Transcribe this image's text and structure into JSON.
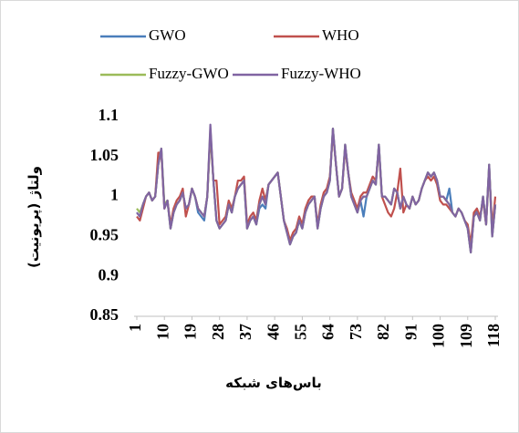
{
  "chart_data": {
    "type": "line",
    "x_label": "باس‌های شبکه",
    "y_label": "ولتاژ (پریونیت)",
    "x": [
      1,
      2,
      3,
      4,
      5,
      6,
      7,
      8,
      9,
      10,
      11,
      12,
      13,
      14,
      15,
      16,
      17,
      18,
      19,
      20,
      21,
      22,
      23,
      24,
      25,
      26,
      27,
      28,
      29,
      30,
      31,
      32,
      33,
      34,
      35,
      36,
      37,
      38,
      39,
      40,
      41,
      42,
      43,
      44,
      45,
      46,
      47,
      48,
      49,
      50,
      51,
      52,
      53,
      54,
      55,
      56,
      57,
      58,
      59,
      60,
      61,
      62,
      63,
      64,
      65,
      66,
      67,
      68,
      69,
      70,
      71,
      72,
      73,
      74,
      75,
      76,
      77,
      78,
      79,
      80,
      81,
      82,
      83,
      84,
      85,
      86,
      87,
      88,
      89,
      90,
      91,
      92,
      93,
      94,
      95,
      96,
      97,
      98,
      99,
      100,
      101,
      102,
      103,
      104,
      105,
      106,
      107,
      108,
      109,
      110,
      111,
      112,
      113,
      114,
      115,
      116,
      117,
      118
    ],
    "xlim": [
      1,
      118
    ],
    "xticks": [
      1,
      10,
      19,
      28,
      37,
      46,
      55,
      64,
      73,
      82,
      91,
      100,
      109,
      118
    ],
    "ylim": [
      0.85,
      1.1
    ],
    "yticks": [
      0.85,
      0.9,
      0.95,
      1,
      1.05,
      1.1
    ],
    "grid": false,
    "series": [
      {
        "name": "GWO",
        "color": "#4a7ebb",
        "values": [
          0.98,
          0.975,
          0.99,
          1.0,
          1.005,
          0.995,
          1.0,
          1.04,
          1.06,
          0.985,
          0.995,
          0.96,
          0.98,
          0.99,
          0.995,
          1.005,
          0.985,
          0.99,
          1.01,
          1.0,
          0.98,
          0.975,
          0.97,
          1.0,
          1.08,
          1.02,
          0.97,
          0.96,
          0.965,
          0.97,
          0.99,
          0.98,
          1.0,
          1.01,
          1.015,
          1.02,
          0.96,
          0.97,
          0.975,
          0.965,
          0.985,
          0.99,
          0.985,
          1.015,
          1.02,
          1.025,
          1.03,
          1.0,
          0.97,
          0.955,
          0.94,
          0.95,
          0.955,
          0.97,
          0.96,
          0.98,
          0.99,
          0.995,
          1.0,
          0.96,
          0.985,
          1.0,
          1.005,
          1.02,
          1.085,
          1.04,
          1.0,
          1.01,
          1.065,
          1.03,
          1.0,
          0.99,
          0.98,
          0.995,
          0.975,
          1.0,
          1.01,
          1.02,
          1.015,
          1.065,
          1.0,
          1.0,
          0.995,
          0.99,
          1.01,
          1.005,
          0.985,
          1.0,
          0.99,
          0.985,
          1.0,
          0.99,
          0.995,
          1.01,
          1.02,
          1.03,
          1.025,
          1.03,
          1.02,
          1.0,
          1.0,
          0.995,
          1.01,
          0.98,
          0.975,
          0.985,
          0.98,
          0.97,
          0.96,
          0.93,
          0.975,
          0.985,
          0.97,
          1.0,
          0.965,
          1.04,
          0.95,
          0.99
        ]
      },
      {
        "name": "WHO",
        "color": "#c0504d",
        "values": [
          0.975,
          0.97,
          0.985,
          1.0,
          1.005,
          0.995,
          1.0,
          1.055,
          1.055,
          0.985,
          0.995,
          0.965,
          0.985,
          0.995,
          1.0,
          1.01,
          0.975,
          0.99,
          1.01,
          1.0,
          0.985,
          0.98,
          0.975,
          1.0,
          1.08,
          1.02,
          1.02,
          0.965,
          0.97,
          0.975,
          0.995,
          0.985,
          1.0,
          1.02,
          1.02,
          1.025,
          0.965,
          0.975,
          0.98,
          0.97,
          0.995,
          1.01,
          0.995,
          1.015,
          1.02,
          1.025,
          1.03,
          1.0,
          0.97,
          0.96,
          0.945,
          0.955,
          0.96,
          0.975,
          0.965,
          0.985,
          0.995,
          1.0,
          1.0,
          0.965,
          0.99,
          1.005,
          1.01,
          1.025,
          1.08,
          1.04,
          1.0,
          1.01,
          1.06,
          1.03,
          1.005,
          0.995,
          0.985,
          1.0,
          1.005,
          1.005,
          1.015,
          1.025,
          1.02,
          1.06,
          1.0,
          0.99,
          0.98,
          0.975,
          0.985,
          1.005,
          1.035,
          0.98,
          0.99,
          0.985,
          1.0,
          0.99,
          0.995,
          1.01,
          1.02,
          1.025,
          1.02,
          1.025,
          1.015,
          0.995,
          0.99,
          0.99,
          0.985,
          0.98,
          0.975,
          0.985,
          0.98,
          0.97,
          0.965,
          0.94,
          0.98,
          0.985,
          0.975,
          0.995,
          0.965,
          1.035,
          0.96,
          1.0
        ]
      },
      {
        "name": "Fuzzy-GWO",
        "color": "#9bbb59",
        "values": [
          0.985,
          0.98,
          0.99,
          1.0,
          1.005,
          0.995,
          1.0,
          1.04,
          1.06,
          0.99,
          0.995,
          0.96,
          0.98,
          0.99,
          0.995,
          1.005,
          0.985,
          0.99,
          1.01,
          1.0,
          0.985,
          0.98,
          0.975,
          1.0,
          1.085,
          1.02,
          0.97,
          0.96,
          0.965,
          0.97,
          0.99,
          0.98,
          1.0,
          1.01,
          1.015,
          1.02,
          0.96,
          0.97,
          0.975,
          0.965,
          0.99,
          1.0,
          0.99,
          1.015,
          1.02,
          1.025,
          1.03,
          1.0,
          0.97,
          0.955,
          0.94,
          0.95,
          0.955,
          0.97,
          0.96,
          0.98,
          0.99,
          0.995,
          1.0,
          0.96,
          0.985,
          1.0,
          1.005,
          1.02,
          1.085,
          1.04,
          1.0,
          1.01,
          1.065,
          1.03,
          1.0,
          0.99,
          0.98,
          0.995,
          1.0,
          1.0,
          1.01,
          1.02,
          1.015,
          1.065,
          1.0,
          1.0,
          0.995,
          0.99,
          1.01,
          1.005,
          0.985,
          1.0,
          0.99,
          0.985,
          1.0,
          0.99,
          0.995,
          1.01,
          1.02,
          1.03,
          1.025,
          1.03,
          1.02,
          1.0,
          1.0,
          0.995,
          0.99,
          0.98,
          0.975,
          0.985,
          0.98,
          0.97,
          0.96,
          0.93,
          0.975,
          0.98,
          0.97,
          1.0,
          0.965,
          1.04,
          0.95,
          0.99
        ]
      },
      {
        "name": "Fuzzy-WHO",
        "color": "#8064a2",
        "values": [
          0.98,
          0.975,
          0.99,
          1.0,
          1.005,
          0.995,
          1.0,
          1.04,
          1.06,
          0.985,
          0.995,
          0.96,
          0.98,
          0.99,
          0.995,
          1.005,
          0.985,
          0.99,
          1.01,
          1.0,
          0.985,
          0.98,
          0.975,
          1.0,
          1.09,
          1.02,
          0.97,
          0.96,
          0.965,
          0.97,
          0.99,
          0.98,
          1.0,
          1.01,
          1.015,
          1.02,
          0.96,
          0.97,
          0.975,
          0.965,
          0.99,
          1.0,
          0.99,
          1.015,
          1.02,
          1.025,
          1.03,
          1.0,
          0.97,
          0.955,
          0.94,
          0.95,
          0.955,
          0.97,
          0.96,
          0.98,
          0.99,
          0.995,
          1.0,
          0.96,
          0.985,
          1.0,
          1.005,
          1.02,
          1.085,
          1.04,
          1.0,
          1.01,
          1.065,
          1.03,
          1.0,
          0.99,
          0.98,
          0.995,
          1.0,
          1.0,
          1.01,
          1.02,
          1.015,
          1.065,
          1.0,
          1.0,
          0.995,
          0.99,
          1.01,
          1.005,
          0.985,
          1.0,
          0.99,
          0.985,
          1.0,
          0.99,
          0.995,
          1.01,
          1.02,
          1.03,
          1.025,
          1.03,
          1.02,
          1.0,
          1.0,
          0.995,
          0.99,
          0.98,
          0.975,
          0.985,
          0.98,
          0.97,
          0.96,
          0.93,
          0.975,
          0.98,
          0.97,
          1.0,
          0.965,
          1.04,
          0.95,
          0.99
        ]
      }
    ]
  }
}
